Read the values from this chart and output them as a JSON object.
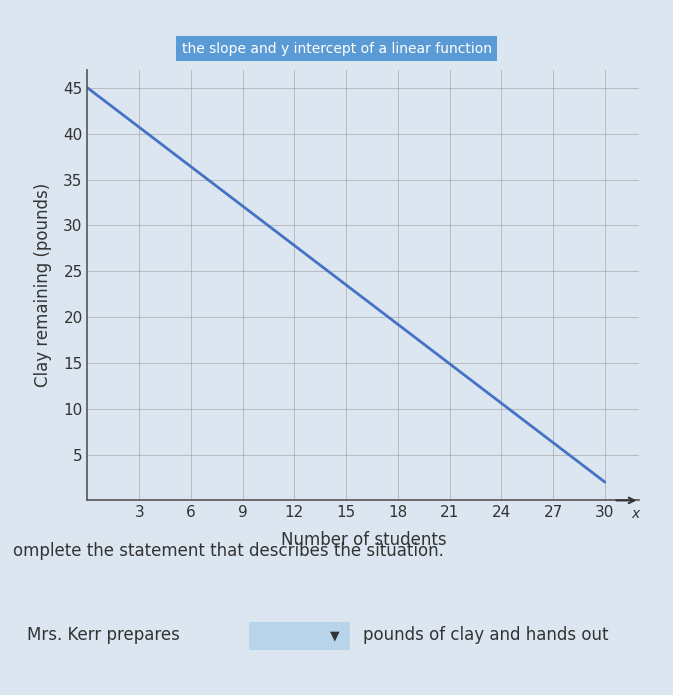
{
  "title": "the slope and y intercept of a linear function",
  "title_color": "#5b9bd5",
  "xlabel": "Number of students",
  "ylabel": "Clay remaining (pounds)",
  "x_ticks": [
    3,
    6,
    9,
    12,
    15,
    18,
    21,
    24,
    27,
    30
  ],
  "y_ticks": [
    5,
    10,
    15,
    20,
    25,
    30,
    35,
    40,
    45
  ],
  "xlim": [
    0,
    32
  ],
  "ylim": [
    0,
    47
  ],
  "line_x": [
    0,
    30
  ],
  "line_y": [
    45,
    2
  ],
  "line_color": "#4472c4",
  "line_width": 2.0,
  "bg_color": "#dce6f1",
  "plot_bg_color": "#dce6f1",
  "grid_color": "#a0a0a0",
  "axis_color": "#555555",
  "text_color": "#333333",
  "complete_text": "omplete the statement that describes the situation.",
  "bottom_text": "Mrs. Kerr prepares",
  "bottom_text2": "pounds of clay and hands out",
  "dropdown_color": "#b8d4ea",
  "arrow_color": "#333333",
  "font_size_ticks": 11,
  "font_size_label": 12,
  "font_size_title": 10,
  "x_label": "x",
  "y_label_pos_x": 30.5,
  "y_label_pos_y": 1.5
}
